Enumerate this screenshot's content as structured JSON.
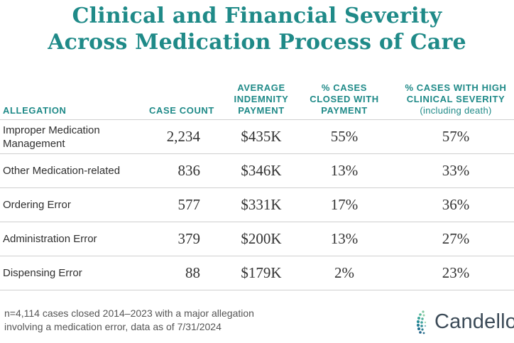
{
  "title": {
    "line1": "Clinical and Financial Severity",
    "line2": "Across Medication Process of Care"
  },
  "table": {
    "headers": {
      "allegation": "ALLEGATION",
      "case_count": "CASE COUNT",
      "avg_payment": [
        "AVERAGE",
        "INDEMNITY",
        "PAYMENT"
      ],
      "closed_with_payment": [
        "% CASES",
        "CLOSED WITH",
        "PAYMENT"
      ],
      "high_severity": [
        "% CASES WITH HIGH",
        "CLINICAL SEVERITY"
      ],
      "high_severity_sub": "(including death)"
    },
    "rows": [
      {
        "allegation": "Improper Medication Management",
        "count": "2,234",
        "payment": "$435K",
        "closed": "55%",
        "severity": "57%"
      },
      {
        "allegation": "Other Medication-related",
        "count": "836",
        "payment": "$346K",
        "closed": "13%",
        "severity": "33%"
      },
      {
        "allegation": "Ordering Error",
        "count": "577",
        "payment": "$331K",
        "closed": "17%",
        "severity": "36%"
      },
      {
        "allegation": "Administration Error",
        "count": "379",
        "payment": "$200K",
        "closed": "13%",
        "severity": "27%"
      },
      {
        "allegation": "Dispensing Error",
        "count": "88",
        "payment": "$179K",
        "closed": "2%",
        "severity": "23%"
      }
    ]
  },
  "footnote": {
    "line1": "n=4,114 cases closed 2014–2023 with a major allegation",
    "line2": "involving a medication error, data as of 7/31/2024"
  },
  "logo": {
    "text": "Candello",
    "icon": "candello-dots-logo-icon"
  },
  "colors": {
    "accent": "#1f8a88",
    "rule": "#cfcfcf",
    "logo_text": "#3b4a57"
  }
}
